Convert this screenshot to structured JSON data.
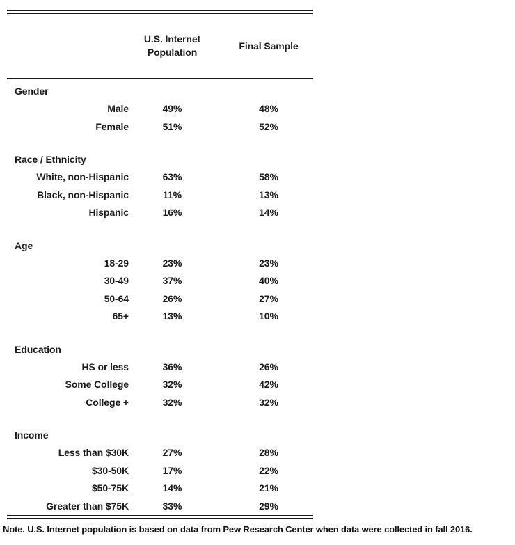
{
  "chart_data": {
    "type": "table",
    "columns": [
      "U.S. Internet\nPopulation",
      "Final Sample"
    ],
    "sections": [
      {
        "label": "Gender",
        "rows": [
          {
            "label": "Male",
            "population": "49%",
            "sample": "48%"
          },
          {
            "label": "Female",
            "population": "51%",
            "sample": "52%"
          }
        ]
      },
      {
        "label": "Race / Ethnicity",
        "rows": [
          {
            "label": "White, non-Hispanic",
            "population": "63%",
            "sample": "58%"
          },
          {
            "label": "Black, non-Hispanic",
            "population": "11%",
            "sample": "13%"
          },
          {
            "label": "Hispanic",
            "population": "16%",
            "sample": "14%"
          }
        ]
      },
      {
        "label": "Age",
        "rows": [
          {
            "label": "18-29",
            "population": "23%",
            "sample": "23%"
          },
          {
            "label": "30-49",
            "population": "37%",
            "sample": "40%"
          },
          {
            "label": "50-64",
            "population": "26%",
            "sample": "27%"
          },
          {
            "label": "65+",
            "population": "13%",
            "sample": "10%"
          }
        ]
      },
      {
        "label": "Education",
        "rows": [
          {
            "label": "HS or less",
            "population": "36%",
            "sample": "26%"
          },
          {
            "label": "Some College",
            "population": "32%",
            "sample": "42%"
          },
          {
            "label": "College +",
            "population": "32%",
            "sample": "32%"
          }
        ]
      },
      {
        "label": "Income",
        "rows": [
          {
            "label": "Less than $30K",
            "population": "27%",
            "sample": "28%"
          },
          {
            "label": "$30-50K",
            "population": "17%",
            "sample": "22%"
          },
          {
            "label": "$50-75K",
            "population": "14%",
            "sample": "21%"
          },
          {
            "label": "Greater than $75K",
            "population": "33%",
            "sample": "29%"
          }
        ]
      }
    ],
    "note": "Note. U.S. Internet population is based on data from Pew Research Center when data were collected in fall 2016."
  }
}
